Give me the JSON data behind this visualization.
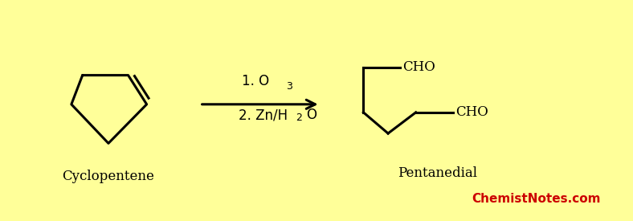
{
  "background_color": "#FFFF99",
  "cyclopentene_label": "Cyclopentene",
  "product_label": "Pentanedial",
  "watermark": "ChemistNotes.com",
  "watermark_color": "#CC0000",
  "line_color": "#000000",
  "label_color": "#000000",
  "arrow_color": "#000000",
  "reagent_text1": "1. O",
  "reagent_sub1": "3",
  "reagent_text2": "2. Zn/H",
  "reagent_sub2": "2",
  "reagent_text2_end": "O"
}
